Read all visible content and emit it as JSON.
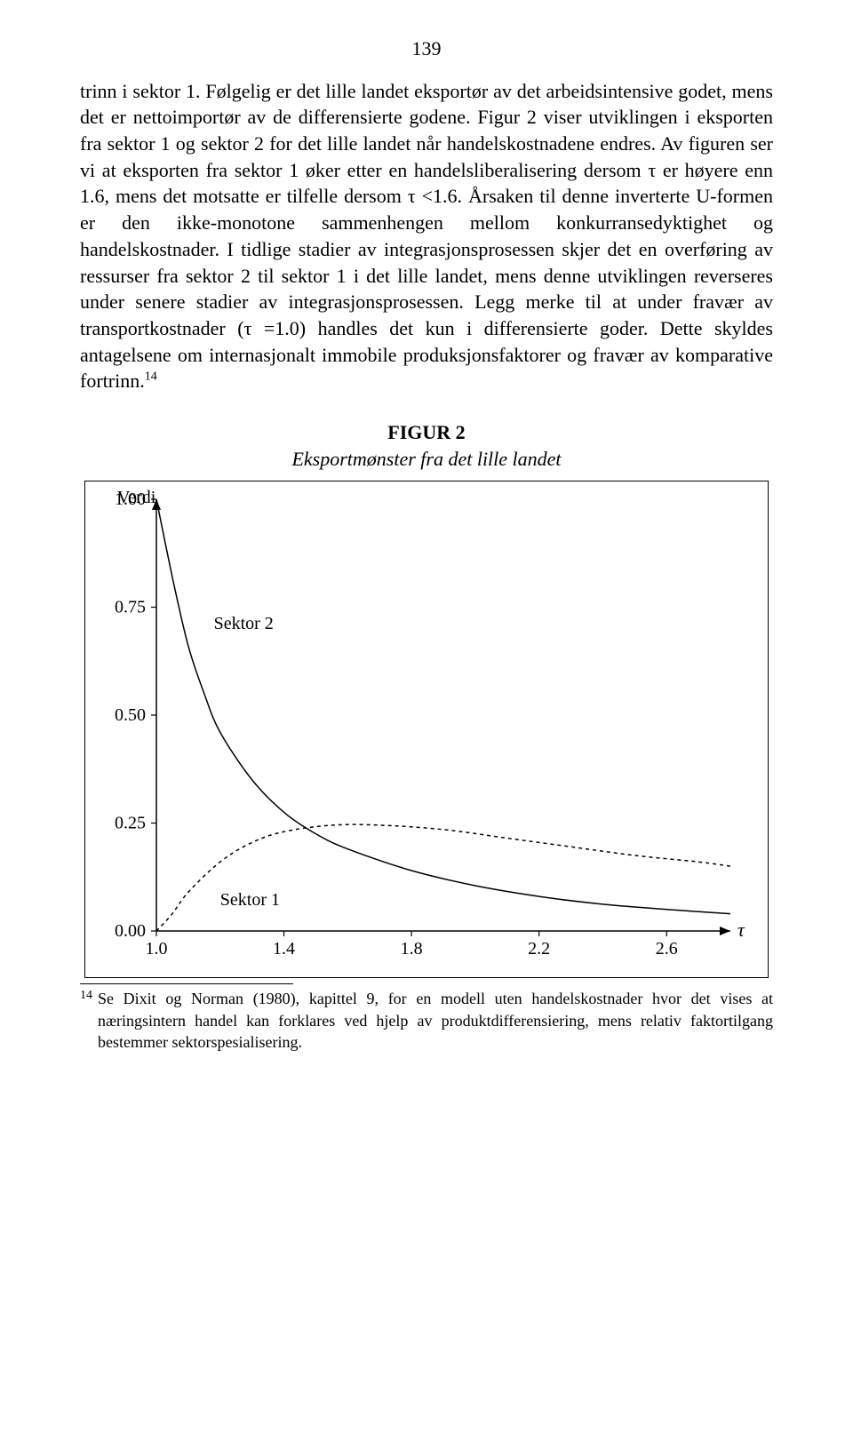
{
  "page_number": "139",
  "body_text": "trinn i sektor 1. Følgelig er det lille landet eksportør av det arbeidsintensive godet, mens det er nettoimportør av de differensierte godene. Figur 2 viser utviklingen i eksporten fra sektor 1 og sektor 2 for det lille landet når handelskostnadene endres. Av figuren ser vi at eksporten fra sektor 1 øker etter en handelsliberalisering dersom τ er høyere enn 1.6, mens det motsatte er tilfelle dersom τ <1.6. Årsaken til denne inverterte U-formen er den ikke-monotone sammenhengen mellom konkurransedyktighet og handelskostnader. I tidlige stadier av integrasjonsprosessen skjer det en overføring av ressurser fra sektor 2 til sektor 1 i det lille landet, mens denne utviklingen reverseres under senere stadier av integrasjonsprosessen. Legg merke til at under fravær av transportkostnader (τ =1.0) handles det kun i differensierte goder. Dette skyldes antagelsene om internasjonalt immobile produksjonsfaktorer og fravær av komparative fortrinn.",
  "body_super": "14",
  "figure": {
    "title": "FIGUR 2",
    "subtitle": "Eksportmønster fra det lille landet",
    "chart": {
      "type": "line",
      "background_color": "#ffffff",
      "frame_color": "#000000",
      "axis_color": "#000000",
      "line_width_axis": 1.5,
      "line_width_series": 1.5,
      "y_label": "Verdi",
      "y_label_fontsize": 20,
      "x_label": "τ",
      "x_label_fontsize": 22,
      "xlim": [
        1.0,
        2.8
      ],
      "ylim": [
        0.0,
        1.0
      ],
      "xticks": [
        1.0,
        1.4,
        1.8,
        2.2,
        2.6
      ],
      "yticks": [
        0.0,
        0.25,
        0.5,
        0.75,
        1.0
      ],
      "xtick_labels": [
        "1.0",
        "1.4",
        "1.8",
        "2.2",
        "2.6"
      ],
      "ytick_labels": [
        "0.00",
        "0.25",
        "0.50",
        "0.75",
        "1.00"
      ],
      "tick_fontsize": 20,
      "series": [
        {
          "name": "Sektor 2",
          "label": "Sektor 2",
          "label_pos": {
            "x": 1.18,
            "y": 0.7
          },
          "label_fontsize": 20,
          "color": "#000000",
          "dash": "none",
          "points": [
            {
              "x": 1.0,
              "y": 1.0
            },
            {
              "x": 1.05,
              "y": 0.82
            },
            {
              "x": 1.1,
              "y": 0.66
            },
            {
              "x": 1.15,
              "y": 0.55
            },
            {
              "x": 1.2,
              "y": 0.46
            },
            {
              "x": 1.3,
              "y": 0.35
            },
            {
              "x": 1.4,
              "y": 0.275
            },
            {
              "x": 1.5,
              "y": 0.225
            },
            {
              "x": 1.6,
              "y": 0.19
            },
            {
              "x": 1.8,
              "y": 0.14
            },
            {
              "x": 2.0,
              "y": 0.105
            },
            {
              "x": 2.2,
              "y": 0.08
            },
            {
              "x": 2.4,
              "y": 0.062
            },
            {
              "x": 2.6,
              "y": 0.05
            },
            {
              "x": 2.8,
              "y": 0.04
            }
          ]
        },
        {
          "name": "Sektor 1",
          "label": "Sektor 1",
          "label_pos": {
            "x": 1.2,
            "y": 0.06
          },
          "label_fontsize": 20,
          "color": "#000000",
          "dash": "4,4",
          "points": [
            {
              "x": 1.0,
              "y": 0.0
            },
            {
              "x": 1.05,
              "y": 0.04
            },
            {
              "x": 1.1,
              "y": 0.09
            },
            {
              "x": 1.2,
              "y": 0.16
            },
            {
              "x": 1.3,
              "y": 0.205
            },
            {
              "x": 1.4,
              "y": 0.23
            },
            {
              "x": 1.55,
              "y": 0.245
            },
            {
              "x": 1.7,
              "y": 0.245
            },
            {
              "x": 1.9,
              "y": 0.235
            },
            {
              "x": 2.1,
              "y": 0.215
            },
            {
              "x": 2.3,
              "y": 0.195
            },
            {
              "x": 2.5,
              "y": 0.175
            },
            {
              "x": 2.7,
              "y": 0.16
            },
            {
              "x": 2.8,
              "y": 0.15
            }
          ]
        }
      ]
    }
  },
  "footnote": {
    "number": "14",
    "text": "Se Dixit og Norman (1980), kapittel 9, for en modell uten handelskostnader hvor det vises at næringsintern handel kan forklares ved hjelp av produktdifferensiering, mens relativ faktortilgang bestemmer sektorspesialisering."
  }
}
